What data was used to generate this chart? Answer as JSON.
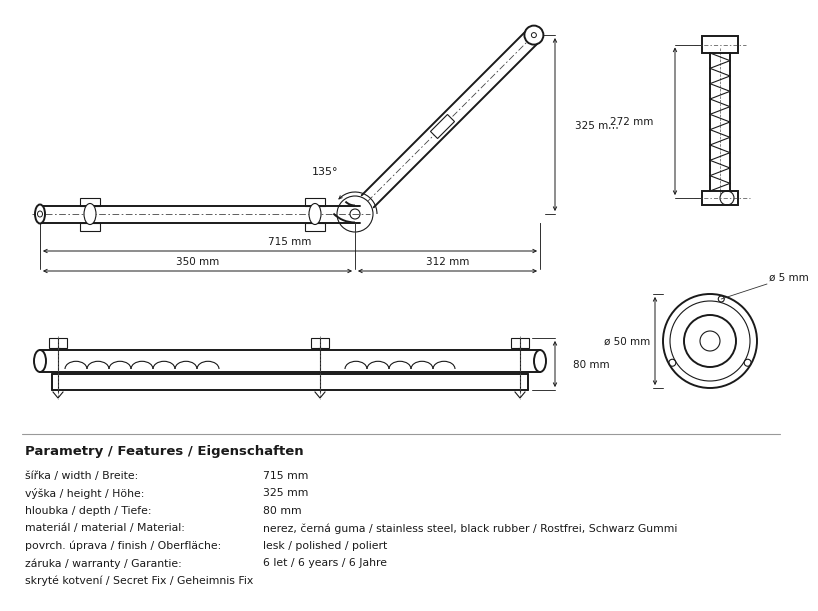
{
  "bg_color": "#ffffff",
  "line_color": "#1a1a1a",
  "title_text": "Parametry / Features / Eigenschaften",
  "params": [
    [
      "šířka / width / Breite:",
      "715 mm"
    ],
    [
      "výška / height / Höhe:",
      "325 mm"
    ],
    [
      "hloubka / depth / Tiefe:",
      "80 mm"
    ],
    [
      "materiál / material / Material:",
      "nerez, černá guma / stainless steel, black rubber / Rostfrei, Schwarz Gummi"
    ],
    [
      "povrch. úprava / finish / Oberfläche:",
      "lesk / polished / poliert"
    ],
    [
      "záruka / warranty / Garantie:",
      "6 let / 6 years / 6 Jahre"
    ],
    [
      "skryté kotvení / Secret Fix / Geheimnis Fix",
      ""
    ]
  ],
  "dim_715": "715 mm",
  "dim_350": "350 mm",
  "dim_312": "312 mm",
  "dim_325": "325 mm",
  "dim_272": "272 mm",
  "dim_80": "80 mm",
  "dim_50": "ø 50 mm",
  "dim_5": "ø 5 mm",
  "angle_label": "135°"
}
